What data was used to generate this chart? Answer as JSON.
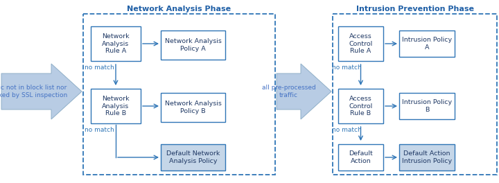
{
  "title_left": "Network Analysis Phase",
  "title_right": "Intrusion Prevention Phase",
  "title_color": "#1f5fa6",
  "box_border_color": "#2e75b6",
  "box_fill_white": "#ffffff",
  "box_fill_gray": "#c5d6e8",
  "dashed_border_color": "#2e75b6",
  "arrow_fill_color": "#b8cce4",
  "arrow_edge_color": "#8fafc8",
  "no_match_color": "#2e75b6",
  "connector_color": "#2e75b6",
  "left_arrow_text": "traffic not in block list nor\nblocked by SSL inspection",
  "mid_arrow_text": "all pre-processed\ntraffic",
  "na_rule_a": "Network\nAnalysis\nRule A",
  "na_rule_b": "Network\nAnalysis\nRule B",
  "na_policy_a": "Network Analysis\nPolicy A",
  "na_policy_b": "Network Analysis\nPolicy B",
  "na_default": "Default Network\nAnalysis Policy",
  "ip_rule_a": "Access\nControl\nRule A",
  "ip_rule_b": "Access\nControl\nRule B",
  "ip_default_action": "Default\nAction",
  "ip_policy_a": "Intrusion Policy\nA",
  "ip_policy_b": "Intrusion Policy\nB",
  "ip_default_policy": "Default Action\nIntrusion Policy",
  "fig_w": 7.2,
  "fig_h": 2.64,
  "dpi": 100
}
